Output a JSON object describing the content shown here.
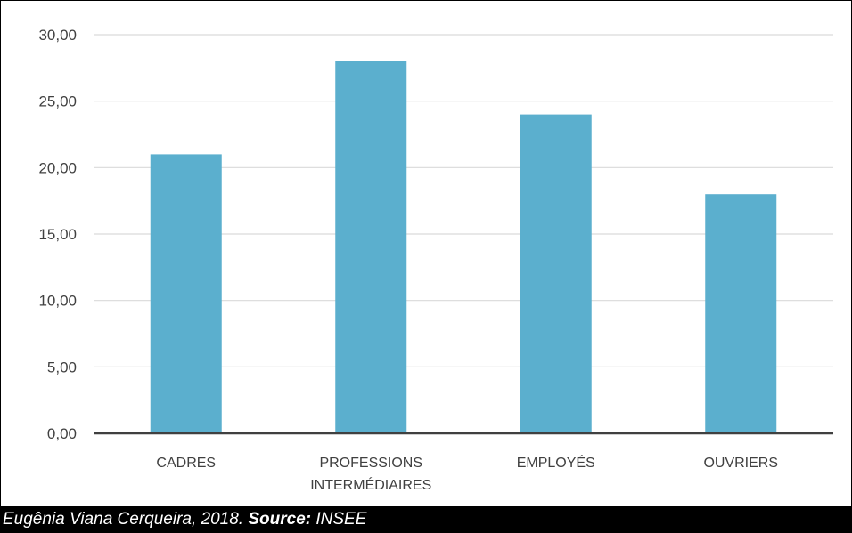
{
  "chart_data": {
    "type": "bar",
    "categories": [
      [
        "CADRES"
      ],
      [
        "PROFESSIONS",
        "INTERMÉDIAIRES"
      ],
      [
        "EMPLOYÉS"
      ],
      [
        "OUVRIERS"
      ]
    ],
    "values": [
      21.0,
      28.0,
      24.0,
      18.0
    ],
    "y_ticks": [
      "0,00",
      "5,00",
      "10,00",
      "15,00",
      "20,00",
      "25,00",
      "30,00"
    ],
    "ylim": [
      0,
      30
    ],
    "grid": true,
    "bar_color": "#5BAFCE",
    "grid_color": "#D9D9D9",
    "axis_color": "#404040"
  },
  "caption": {
    "author": "Eugênia Viana Cerqueira, 2018. ",
    "source_label": "Source:",
    "source_value": " INSEE"
  }
}
